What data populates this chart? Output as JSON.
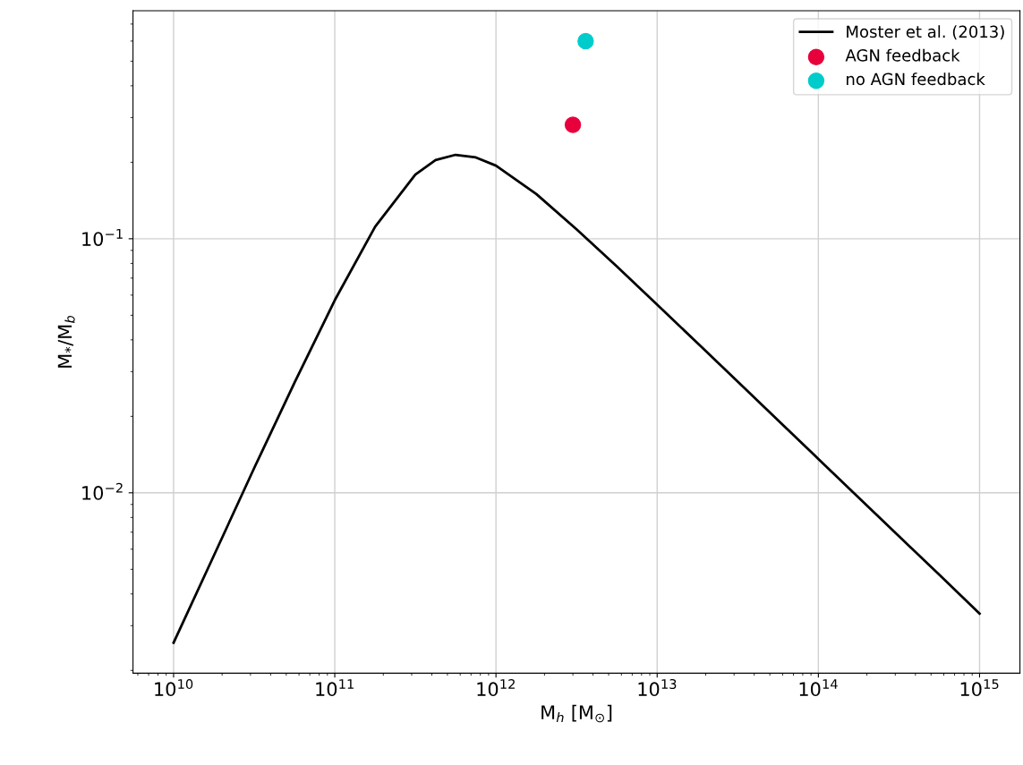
{
  "chart_data": {
    "type": "line",
    "xlabel": "M$_{h}$ [M$_{⊙}$]",
    "ylabel": "M$_{*}$/M$_{b}$",
    "log": "xy",
    "grid": true,
    "legend": "top right",
    "xlim": [
      5600000000.0,
      1780000000000000.0
    ],
    "ylim": [
      0.00195,
      0.79
    ],
    "xticks": [
      {
        "value": 10000000000.0,
        "label": "10$^{10}$"
      },
      {
        "value": 100000000000.0,
        "label": "10$^{11}$"
      },
      {
        "value": 1000000000000.0,
        "label": "10$^{12}$"
      },
      {
        "value": 10000000000000.0,
        "label": "10$^{13}$"
      },
      {
        "value": 100000000000000.0,
        "label": "10$^{14}$"
      },
      {
        "value": 1000000000000000.0,
        "label": "10$^{15}$"
      }
    ],
    "yticks": [
      {
        "value": 0.01,
        "label": "10$^{−2}$"
      },
      {
        "value": 0.1,
        "label": "10$^{−1}$"
      }
    ],
    "series": [
      {
        "name": "Moster et al. (2013)",
        "color": "#000000",
        "marker": "none",
        "line_style": "solid",
        "x": [
          10000000000.0,
          17800000000.0,
          31600000000.0,
          56200000000.0,
          100000000000.0,
          178000000000.0,
          316000000000.0,
          422000000000.0,
          562000000000.0,
          750000000000.0,
          1000000000000.0,
          1780000000000.0,
          3160000000000.0,
          5620000000000.0,
          10000000000000.0,
          17800000000000.0,
          31600000000000.0,
          56200000000000.0,
          100000000000000.0,
          178000000000000.0,
          316000000000000.0,
          562000000000000.0,
          1000000000000000.0
        ],
        "values": [
          0.00257,
          0.00567,
          0.0125,
          0.0271,
          0.0573,
          0.1115,
          0.179,
          0.204,
          0.214,
          0.209,
          0.194,
          0.15,
          0.109,
          0.0778,
          0.055,
          0.0388,
          0.0274,
          0.0193,
          0.0136,
          0.00957,
          0.00675,
          0.00476,
          0.00335
        ]
      },
      {
        "name": "AGN feedback",
        "type": "scatter",
        "color": "#e8003d",
        "marker": "circle",
        "x": [
          3000000000000.0
        ],
        "values": [
          0.281
        ]
      },
      {
        "name": "no AGN feedback",
        "type": "scatter",
        "color": "#00cccc",
        "marker": "circle",
        "x": [
          3600000000000.0
        ],
        "values": [
          0.6
        ]
      }
    ]
  }
}
